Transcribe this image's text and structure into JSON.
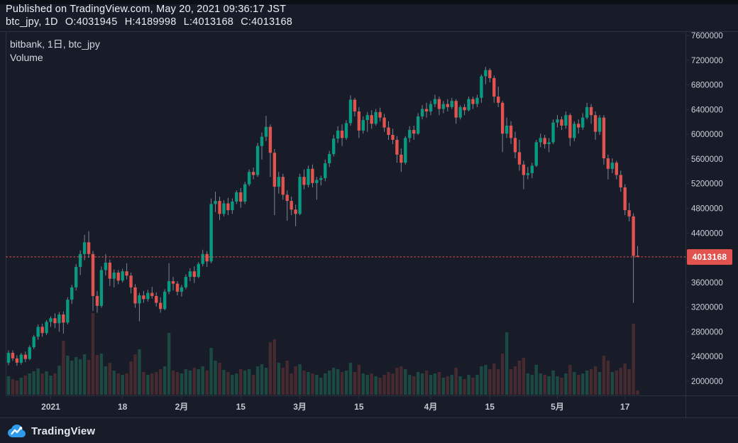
{
  "published_bar": {
    "text": "Published on TradingView.com, May 20, 2021 09:36:17 JST"
  },
  "symbol_bar": {
    "symbol_interval": "btc_jpy, 1D",
    "open": "O:4031945",
    "high": "H:4189998",
    "low": "L:4013168",
    "close": "C:4013168"
  },
  "legend": {
    "series_title": "bitbank, 1日, btc_jpy",
    "indicator": "Volume"
  },
  "price_label": {
    "value": "4013168"
  },
  "footer": {
    "brand": "TradingView"
  },
  "colors": {
    "background": "#171c28",
    "up": "#089981",
    "down": "#e0534e",
    "vol_up": "#1c4a42",
    "vol_down": "#472a30",
    "wick": "#8a919f",
    "last_line": "#ef534a",
    "badge_bg": "#e0534e",
    "border": "#2a3140",
    "price_axis_text": "#ccd1db",
    "time_axis_text": "#c2c7d1"
  },
  "chart_data": {
    "type": "candlestick",
    "title": "bitbank btc_jpy 1日 (daily) candlesticks with Volume",
    "exchange": "bitbank",
    "symbol": "btc_jpy",
    "interval": "1日",
    "date_range": "2020-12-22 to 2021-05-20",
    "price_units": "JPY; candle O/H/L/C stored in millions of JPY",
    "grid": false,
    "legend_position": "top-left",
    "y_ticks": [
      7600000,
      7200000,
      6800000,
      6400000,
      6000000,
      5600000,
      5200000,
      4800000,
      4400000,
      4000000,
      3600000,
      3200000,
      2800000,
      2400000,
      2000000
    ],
    "x_labels": [
      {
        "label": "2021",
        "index": 10
      },
      {
        "label": "18",
        "index": 27
      },
      {
        "label": "2月",
        "index": 41
      },
      {
        "label": "15",
        "index": 55
      },
      {
        "label": "3月",
        "index": 69
      },
      {
        "label": "15",
        "index": 83
      },
      {
        "label": "4月",
        "index": 100
      },
      {
        "label": "15",
        "index": 114
      },
      {
        "label": "5月",
        "index": 130
      },
      {
        "label": "17",
        "index": 146
      }
    ],
    "last_price": 4013168,
    "last_price_line": 4013168,
    "current_bar_ohlc": {
      "open": 4031945,
      "high": 4189998,
      "low": 4013168,
      "close": 4013168
    },
    "volume_note": "volume axis unlabeled; v values are relative heights",
    "candles": [
      [
        2.3,
        2.5,
        2.26,
        2.46,
        26
      ],
      [
        2.46,
        2.5,
        2.33,
        2.37,
        22
      ],
      [
        2.37,
        2.42,
        2.25,
        2.3,
        20
      ],
      [
        2.3,
        2.46,
        2.27,
        2.43,
        24
      ],
      [
        2.43,
        2.48,
        2.31,
        2.36,
        27
      ],
      [
        2.36,
        2.58,
        2.34,
        2.55,
        30
      ],
      [
        2.55,
        2.75,
        2.52,
        2.72,
        33
      ],
      [
        2.72,
        2.92,
        2.67,
        2.88,
        37
      ],
      [
        2.88,
        2.93,
        2.72,
        2.78,
        30
      ],
      [
        2.78,
        2.99,
        2.75,
        2.96,
        33
      ],
      [
        2.96,
        3.05,
        2.88,
        3.02,
        27
      ],
      [
        3.02,
        3.1,
        2.86,
        2.94,
        30
      ],
      [
        2.94,
        3.12,
        2.8,
        3.08,
        41
      ],
      [
        3.08,
        3.13,
        2.77,
        2.95,
        76
      ],
      [
        2.95,
        3.36,
        2.92,
        3.32,
        55
      ],
      [
        3.32,
        3.56,
        3.25,
        3.52,
        48
      ],
      [
        3.52,
        3.9,
        3.47,
        3.85,
        53
      ],
      [
        3.85,
        4.12,
        3.72,
        4.06,
        50
      ],
      [
        4.06,
        4.37,
        3.96,
        4.25,
        57
      ],
      [
        4.25,
        4.43,
        4.0,
        4.06,
        49
      ],
      [
        4.06,
        4.11,
        3.14,
        3.38,
        115
      ],
      [
        3.38,
        3.46,
        3.11,
        3.22,
        56
      ],
      [
        3.22,
        3.86,
        3.19,
        3.8,
        58
      ],
      [
        3.8,
        4.06,
        3.71,
        3.92,
        40
      ],
      [
        3.92,
        3.97,
        3.54,
        3.66,
        45
      ],
      [
        3.66,
        3.81,
        3.52,
        3.76,
        34
      ],
      [
        3.76,
        3.8,
        3.57,
        3.63,
        30
      ],
      [
        3.63,
        3.82,
        3.6,
        3.78,
        28
      ],
      [
        3.78,
        3.91,
        3.65,
        3.71,
        30
      ],
      [
        3.71,
        3.76,
        3.42,
        3.52,
        47
      ],
      [
        3.52,
        3.57,
        3.19,
        3.26,
        57
      ],
      [
        3.26,
        3.43,
        2.97,
        3.39,
        64
      ],
      [
        3.39,
        3.46,
        3.27,
        3.33,
        32
      ],
      [
        3.33,
        3.48,
        3.29,
        3.43,
        28
      ],
      [
        3.43,
        3.53,
        3.34,
        3.38,
        30
      ],
      [
        3.38,
        3.44,
        3.21,
        3.27,
        32
      ],
      [
        3.27,
        3.36,
        3.11,
        3.17,
        36
      ],
      [
        3.17,
        3.49,
        3.15,
        3.45,
        40
      ],
      [
        3.45,
        3.91,
        3.41,
        3.62,
        87
      ],
      [
        3.62,
        3.69,
        3.47,
        3.58,
        34
      ],
      [
        3.58,
        3.62,
        3.39,
        3.45,
        32
      ],
      [
        3.45,
        3.56,
        3.37,
        3.52,
        30
      ],
      [
        3.52,
        3.73,
        3.49,
        3.69,
        36
      ],
      [
        3.69,
        3.83,
        3.62,
        3.78,
        34
      ],
      [
        3.78,
        3.86,
        3.59,
        3.69,
        38
      ],
      [
        3.69,
        3.93,
        3.67,
        3.9,
        36
      ],
      [
        3.9,
        4.13,
        3.86,
        4.06,
        40
      ],
      [
        4.06,
        4.11,
        3.85,
        3.94,
        34
      ],
      [
        3.94,
        4.96,
        3.91,
        4.87,
        66
      ],
      [
        4.87,
        5.07,
        4.74,
        4.92,
        48
      ],
      [
        4.92,
        4.99,
        4.61,
        4.71,
        45
      ],
      [
        4.71,
        4.93,
        4.67,
        4.88,
        35
      ],
      [
        4.88,
        4.97,
        4.69,
        4.77,
        32
      ],
      [
        4.77,
        4.96,
        4.71,
        4.91,
        28
      ],
      [
        4.91,
        5.09,
        4.87,
        5.06,
        30
      ],
      [
        5.06,
        5.13,
        4.81,
        4.91,
        36
      ],
      [
        4.91,
        5.23,
        4.87,
        5.19,
        34
      ],
      [
        5.19,
        5.43,
        5.16,
        5.39,
        36
      ],
      [
        5.39,
        5.46,
        5.27,
        5.34,
        28
      ],
      [
        5.34,
        5.86,
        5.31,
        5.81,
        40
      ],
      [
        5.81,
        6.03,
        5.59,
        5.96,
        43
      ],
      [
        5.96,
        6.3,
        5.89,
        6.12,
        38
      ],
      [
        6.12,
        6.16,
        5.31,
        5.7,
        74
      ],
      [
        5.7,
        5.76,
        4.69,
        5.15,
        78
      ],
      [
        5.15,
        5.39,
        5.04,
        5.31,
        45
      ],
      [
        5.31,
        5.36,
        4.94,
        5.02,
        38
      ],
      [
        5.02,
        5.09,
        4.6,
        4.92,
        48
      ],
      [
        4.92,
        4.99,
        4.69,
        4.78,
        30
      ],
      [
        4.78,
        4.86,
        4.51,
        4.71,
        40
      ],
      [
        4.71,
        5.36,
        4.69,
        5.31,
        43
      ],
      [
        5.31,
        5.43,
        5.11,
        5.18,
        34
      ],
      [
        5.18,
        5.49,
        5.14,
        5.44,
        32
      ],
      [
        5.44,
        5.51,
        5.14,
        5.21,
        30
      ],
      [
        5.21,
        5.31,
        4.94,
        5.26,
        28
      ],
      [
        5.26,
        5.33,
        5.17,
        5.29,
        24
      ],
      [
        5.29,
        5.59,
        5.24,
        5.53,
        30
      ],
      [
        5.53,
        5.73,
        5.47,
        5.68,
        34
      ],
      [
        5.68,
        5.99,
        5.64,
        5.93,
        38
      ],
      [
        5.93,
        6.13,
        5.86,
        6.06,
        36
      ],
      [
        6.06,
        6.16,
        5.81,
        5.94,
        32
      ],
      [
        5.94,
        6.23,
        5.91,
        6.18,
        34
      ],
      [
        6.18,
        6.63,
        6.14,
        6.56,
        45
      ],
      [
        6.56,
        6.59,
        6.29,
        6.37,
        32
      ],
      [
        6.37,
        6.44,
        5.94,
        6.06,
        42
      ],
      [
        6.06,
        6.29,
        6.01,
        6.23,
        30
      ],
      [
        6.23,
        6.36,
        6.04,
        6.31,
        28
      ],
      [
        6.31,
        6.39,
        6.09,
        6.17,
        30
      ],
      [
        6.17,
        6.41,
        6.14,
        6.36,
        26
      ],
      [
        6.36,
        6.43,
        6.21,
        6.27,
        24
      ],
      [
        6.27,
        6.33,
        6.04,
        6.11,
        28
      ],
      [
        6.11,
        6.21,
        5.91,
        5.99,
        32
      ],
      [
        5.99,
        6.09,
        5.84,
        5.91,
        30
      ],
      [
        5.91,
        5.97,
        5.54,
        5.67,
        38
      ],
      [
        5.67,
        5.77,
        5.39,
        5.54,
        40
      ],
      [
        5.54,
        5.97,
        5.51,
        5.94,
        36
      ],
      [
        5.94,
        6.13,
        5.87,
        6.07,
        28
      ],
      [
        6.07,
        6.14,
        5.91,
        6.01,
        26
      ],
      [
        6.01,
        6.34,
        5.99,
        6.29,
        32
      ],
      [
        6.29,
        6.47,
        6.24,
        6.41,
        30
      ],
      [
        6.41,
        6.51,
        6.27,
        6.37,
        34
      ],
      [
        6.37,
        6.54,
        6.31,
        6.49,
        28
      ],
      [
        6.49,
        6.64,
        6.44,
        6.57,
        30
      ],
      [
        6.57,
        6.61,
        6.31,
        6.41,
        32
      ],
      [
        6.41,
        6.54,
        6.34,
        6.49,
        24
      ],
      [
        6.49,
        6.57,
        6.37,
        6.44,
        26
      ],
      [
        6.44,
        6.59,
        6.41,
        6.54,
        28
      ],
      [
        6.54,
        6.57,
        6.17,
        6.27,
        38
      ],
      [
        6.27,
        6.47,
        6.24,
        6.44,
        26
      ],
      [
        6.44,
        6.49,
        6.31,
        6.39,
        22
      ],
      [
        6.39,
        6.61,
        6.37,
        6.57,
        28
      ],
      [
        6.57,
        6.61,
        6.41,
        6.49,
        24
      ],
      [
        6.49,
        6.64,
        6.44,
        6.59,
        28
      ],
      [
        6.59,
        6.97,
        6.51,
        6.94,
        40
      ],
      [
        6.94,
        7.09,
        6.81,
        7.04,
        42
      ],
      [
        7.04,
        7.07,
        6.84,
        6.91,
        36
      ],
      [
        6.91,
        6.95,
        6.51,
        6.61,
        44
      ],
      [
        6.61,
        6.77,
        6.44,
        6.51,
        36
      ],
      [
        6.51,
        6.54,
        5.71,
        6.01,
        58
      ],
      [
        6.01,
        6.27,
        5.94,
        6.14,
        88
      ],
      [
        6.14,
        6.21,
        5.84,
        5.94,
        36
      ],
      [
        5.94,
        6.04,
        5.61,
        5.71,
        40
      ],
      [
        5.71,
        5.91,
        5.41,
        5.51,
        48
      ],
      [
        5.51,
        5.57,
        5.11,
        5.34,
        52
      ],
      [
        5.34,
        5.47,
        5.27,
        5.37,
        30
      ],
      [
        5.37,
        5.54,
        5.29,
        5.49,
        28
      ],
      [
        5.49,
        5.91,
        5.47,
        5.87,
        42
      ],
      [
        5.87,
        6.01,
        5.79,
        5.94,
        30
      ],
      [
        5.94,
        5.99,
        5.77,
        5.84,
        28
      ],
      [
        5.84,
        5.94,
        5.71,
        5.87,
        26
      ],
      [
        5.87,
        6.24,
        5.84,
        6.19,
        34
      ],
      [
        6.19,
        6.31,
        6.11,
        6.24,
        26
      ],
      [
        6.24,
        6.29,
        6.07,
        6.14,
        24
      ],
      [
        6.14,
        6.37,
        6.09,
        6.31,
        30
      ],
      [
        6.31,
        6.34,
        5.81,
        5.94,
        42
      ],
      [
        5.94,
        6.21,
        5.89,
        6.17,
        32
      ],
      [
        6.17,
        6.24,
        6.01,
        6.11,
        28
      ],
      [
        6.11,
        6.34,
        6.07,
        6.27,
        30
      ],
      [
        6.27,
        6.51,
        6.24,
        6.44,
        34
      ],
      [
        6.44,
        6.49,
        6.17,
        6.31,
        36
      ],
      [
        6.31,
        6.37,
        5.91,
        6.04,
        40
      ],
      [
        6.04,
        6.31,
        5.99,
        6.27,
        32
      ],
      [
        6.27,
        6.31,
        5.51,
        5.61,
        55
      ],
      [
        5.61,
        5.67,
        5.27,
        5.44,
        48
      ],
      [
        5.44,
        5.61,
        5.37,
        5.54,
        32
      ],
      [
        5.54,
        5.57,
        5.27,
        5.34,
        34
      ],
      [
        5.34,
        5.41,
        5.07,
        5.14,
        38
      ],
      [
        5.14,
        5.19,
        4.69,
        4.77,
        44
      ],
      [
        4.77,
        4.89,
        4.59,
        4.67,
        36
      ],
      [
        4.67,
        4.72,
        3.27,
        4.03,
        100
      ],
      [
        4.032,
        4.19,
        4.013,
        4.013,
        6
      ]
    ]
  }
}
